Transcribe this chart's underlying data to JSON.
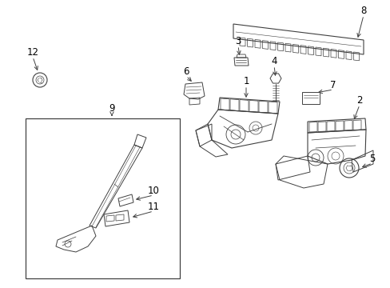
{
  "bg_color": "#ffffff",
  "line_color": "#404040",
  "fig_width": 4.89,
  "fig_height": 3.6,
  "dpi": 100
}
